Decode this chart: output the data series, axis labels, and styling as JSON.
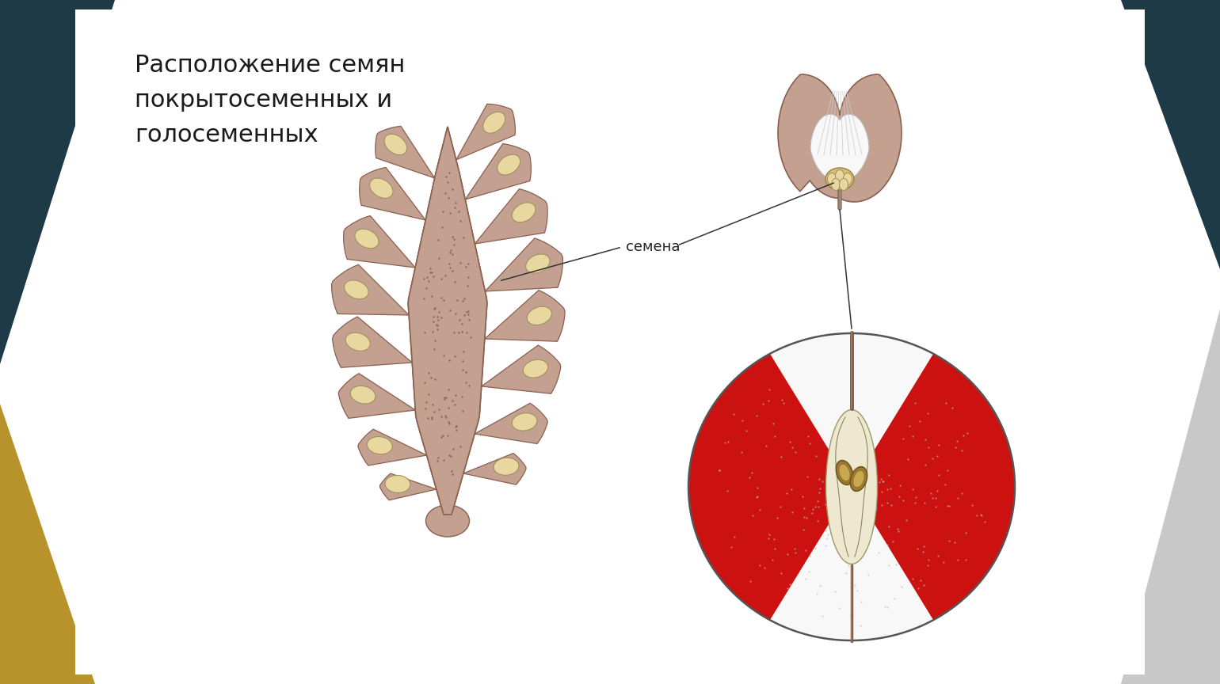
{
  "title_line1": "Расположение семян",
  "title_line2": "покрытосеменных и",
  "title_line3": "голосеменных",
  "label_semena": "семена",
  "bg_color": "#ffffff",
  "corner_tl_color": "#1e3a47",
  "corner_bl_color": "#b8922a",
  "corner_tr_color": "#1e3a47",
  "corner_br_color": "#c8c8c8",
  "cone_body_color": "#c4a090",
  "cone_body_edge": "#8a6050",
  "seed_color": "#e8d8a0",
  "seed_edge": "#a09060",
  "apple_flesh_color": "#f5f5f5",
  "apple_red_color": "#cc1111",
  "apple_core_color": "#e8dcc0",
  "apple_seed_color": "#c8a850",
  "apple_edge_color": "#555555",
  "flower_outer_color": "#c4a090",
  "flower_white_color": "#f8f8f8",
  "title_fontsize": 22,
  "label_fontsize": 13
}
